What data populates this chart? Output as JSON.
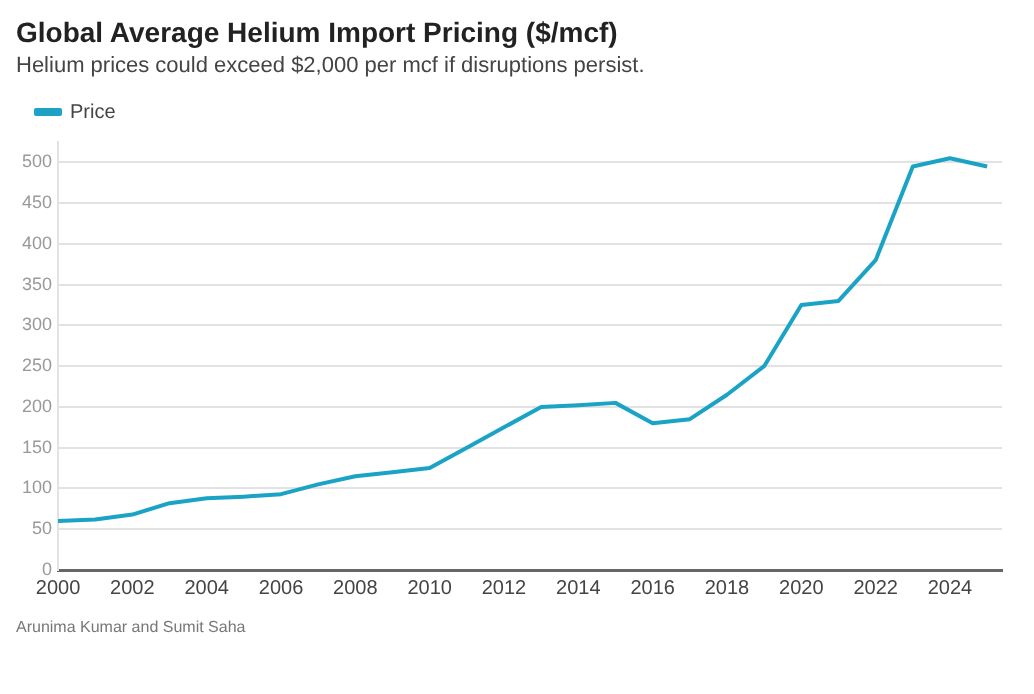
{
  "chart_data": {
    "type": "line",
    "title": "Global Average Helium Import Pricing ($/mcf)",
    "subtitle": "Helium prices could exceed $2,000 per mcf if disruptions persist.",
    "x": [
      2000,
      2001,
      2002,
      2003,
      2004,
      2005,
      2006,
      2007,
      2008,
      2009,
      2010,
      2011,
      2012,
      2013,
      2014,
      2015,
      2016,
      2017,
      2018,
      2019,
      2020,
      2021,
      2022,
      2023,
      2024,
      2025
    ],
    "series": [
      {
        "name": "Price",
        "color": "#1ba3c6",
        "values": [
          60,
          62,
          68,
          82,
          88,
          90,
          93,
          105,
          115,
          120,
          125,
          150,
          175,
          200,
          202,
          205,
          180,
          185,
          215,
          250,
          325,
          330,
          380,
          495,
          505,
          495
        ]
      }
    ],
    "xlim": [
      2000,
      2025.4
    ],
    "xticks": [
      2000,
      2002,
      2004,
      2006,
      2008,
      2010,
      2012,
      2014,
      2016,
      2018,
      2020,
      2022,
      2024
    ],
    "ylim": [
      0,
      525
    ],
    "yticks": [
      0,
      50,
      100,
      150,
      200,
      250,
      300,
      350,
      400,
      450,
      500
    ],
    "grid": "y",
    "legend": "top left",
    "marker": "none",
    "line_style": "solid",
    "annotations": [
      "Arunima Kumar and Sumit Saha"
    ]
  }
}
